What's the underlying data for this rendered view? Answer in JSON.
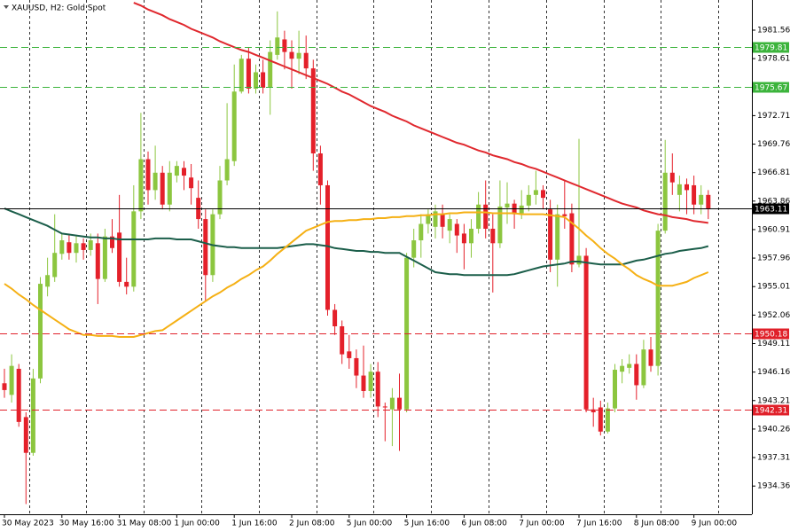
{
  "chart_data": {
    "type": "candlestick",
    "title": "XAUUSD, H2:  Gold Spot",
    "categories": [
      "30 May 2023",
      null,
      null,
      null,
      null,
      null,
      null,
      null,
      "30 May 16:00",
      null,
      null,
      null,
      null,
      null,
      null,
      null,
      "31 May 08:00",
      null,
      null,
      null,
      null,
      null,
      null,
      null,
      "1 Jun 00:00",
      null,
      null,
      null,
      null,
      null,
      null,
      null,
      "1 Jun 16:00",
      null,
      null,
      null,
      null,
      null,
      null,
      null,
      "2 Jun 08:00",
      null,
      null,
      null,
      null,
      null,
      null,
      null,
      "5 Jun 00:00",
      null,
      null,
      null,
      null,
      null,
      null,
      null,
      "5 Jun 16:00",
      null,
      null,
      null,
      null,
      null,
      null,
      null,
      "6 Jun 08:00",
      null,
      null,
      null,
      null,
      null,
      null,
      null,
      "7 Jun 00:00",
      null,
      null,
      null,
      null,
      null,
      null,
      null,
      "7 Jun 16:00",
      null,
      null,
      null,
      null,
      null,
      null,
      null,
      "8 Jun 08:00",
      null,
      null,
      null,
      null,
      null,
      null,
      null,
      "9 Jun 00:00",
      null,
      null
    ],
    "open": [
      1945.0,
      1943.8,
      1946.5,
      1941.5,
      1937.8,
      1945.5,
      1955.0,
      1956.0,
      1958.4,
      1959.6,
      1958.5,
      1959.5,
      1958.8,
      1959.5,
      1955.8,
      1960.2,
      1960.6,
      1955.5,
      1955.0,
      1962.8,
      1968.2,
      1965.0,
      1966.8,
      1963.5,
      1966.5,
      1967.3,
      1966.3,
      1964.2,
      1962.0,
      1956.2,
      1962.5,
      1966.0,
      1968.0,
      1975.2,
      1978.6,
      1975.5,
      1977.2,
      1975.6,
      1979.0,
      1980.6,
      1979.3,
      1978.6,
      1979.2,
      1977.6,
      1968.8,
      1965.5,
      1952.6,
      1950.9,
      1948.3,
      1947.6,
      1945.8,
      1944.2,
      1946.2,
      1942.6,
      1942.3,
      1943.5,
      1942.3,
      1958.0,
      1959.8,
      1961.5,
      1961.2,
      1962.5,
      1960.8,
      1961.5,
      1960.5,
      1959.5,
      1961.0,
      1963.5,
      1961.0,
      1959.5,
      1963.2,
      1963.6,
      1962.6,
      1963.4,
      1964.5,
      1965.0,
      1963.0,
      1957.8,
      1962.5,
      1962.6,
      1957.3,
      1958.2,
      1942.3,
      1942.5,
      1940.0,
      1942.4,
      1946.2,
      1946.6,
      1947.0,
      1944.8,
      1948.5,
      1946.8,
      1960.8,
      1966.8,
      1964.5,
      1965.6,
      1965.5,
      1963.5,
      1964.5
    ],
    "high": [
      1946.5,
      1948.0,
      1947.0,
      1942.0,
      1946.5,
      1956.0,
      1958.0,
      1962.5,
      1960.5,
      1960.5,
      1960.2,
      1960.0,
      1960.5,
      1960.5,
      1961.0,
      1962.0,
      1964.5,
      1958.0,
      1965.5,
      1973.0,
      1969.0,
      1969.6,
      1967.5,
      1968.0,
      1968.0,
      1968.0,
      1967.7,
      1966.0,
      1963.0,
      1963.0,
      1967.5,
      1974.0,
      1978.0,
      1979.0,
      1979.8,
      1978.0,
      1978.5,
      1980.5,
      1983.5,
      1981.5,
      1980.5,
      1981.5,
      1981.0,
      1978.5,
      1969.6,
      1966.0,
      1953.2,
      1951.5,
      1950.0,
      1948.5,
      1948.9,
      1947.0,
      1947.2,
      1943.0,
      1944.5,
      1946.0,
      1958.5,
      1961.0,
      1962.5,
      1963.0,
      1963.5,
      1963.5,
      1962.5,
      1962.0,
      1961.5,
      1962.0,
      1964.8,
      1966.0,
      1962.5,
      1966.0,
      1965.8,
      1964.0,
      1965.0,
      1965.5,
      1967.0,
      1965.5,
      1964.0,
      1963.5,
      1966.0,
      1963.6,
      1970.3,
      1959.0,
      1943.5,
      1943.2,
      1943.0,
      1947.0,
      1947.5,
      1948.0,
      1948.0,
      1949.5,
      1949.8,
      1961.5,
      1970.2,
      1968.8,
      1966.5,
      1966.2,
      1966.5,
      1965.5,
      1965.0
    ],
    "low": [
      1943.5,
      1943.0,
      1940.5,
      1932.5,
      1937.5,
      1945.0,
      1954.0,
      1955.5,
      1957.8,
      1957.8,
      1957.5,
      1957.8,
      1958.2,
      1953.2,
      1955.5,
      1958.5,
      1955.0,
      1954.2,
      1954.5,
      1962.0,
      1963.5,
      1964.0,
      1963.0,
      1962.8,
      1965.8,
      1965.0,
      1963.5,
      1961.0,
      1953.5,
      1955.5,
      1962.0,
      1965.5,
      1967.5,
      1975.0,
      1975.0,
      1975.0,
      1975.0,
      1972.8,
      1978.5,
      1977.5,
      1975.5,
      1977.0,
      1976.5,
      1967.0,
      1963.5,
      1952.0,
      1950.0,
      1947.0,
      1946.5,
      1944.5,
      1943.5,
      1943.5,
      1941.5,
      1939.0,
      1938.5,
      1938.0,
      1942.0,
      1957.0,
      1958.0,
      1960.5,
      1960.0,
      1960.0,
      1959.5,
      1958.5,
      1956.8,
      1958.0,
      1960.5,
      1960.0,
      1954.4,
      1959.0,
      1961.5,
      1961.0,
      1962.0,
      1962.8,
      1963.5,
      1963.0,
      1956.5,
      1955.0,
      1961.0,
      1956.5,
      1957.0,
      1942.0,
      1940.5,
      1939.6,
      1939.8,
      1942.0,
      1945.0,
      1946.0,
      1943.3,
      1944.5,
      1946.2,
      1945.8,
      1960.5,
      1964.5,
      1962.8,
      1962.5,
      1962.5,
      1962.5,
      1962.0
    ],
    "close": [
      1944.3,
      1946.8,
      1941.0,
      1937.8,
      1945.5,
      1955.3,
      1956.2,
      1958.5,
      1959.8,
      1958.5,
      1959.5,
      1958.8,
      1959.8,
      1955.8,
      1960.2,
      1959.0,
      1955.5,
      1955.0,
      1962.8,
      1968.2,
      1965.0,
      1966.8,
      1963.5,
      1966.8,
      1967.5,
      1966.5,
      1965.2,
      1962.0,
      1956.2,
      1962.5,
      1966.0,
      1968.2,
      1975.2,
      1978.6,
      1975.5,
      1977.2,
      1975.6,
      1979.3,
      1980.8,
      1979.3,
      1978.6,
      1979.2,
      1977.6,
      1968.8,
      1965.5,
      1952.6,
      1950.9,
      1948.0,
      1947.6,
      1945.8,
      1944.2,
      1946.2,
      1942.6,
      1942.5,
      1943.5,
      1942.3,
      1958.0,
      1959.8,
      1961.5,
      1962.5,
      1962.8,
      1961.2,
      1962.0,
      1960.3,
      1959.5,
      1961.0,
      1963.5,
      1961.0,
      1959.5,
      1963.3,
      1963.6,
      1962.5,
      1963.4,
      1964.5,
      1965.0,
      1964.2,
      1957.8,
      1962.5,
      1962.3,
      1957.3,
      1958.2,
      1942.3,
      1942.0,
      1940.0,
      1942.4,
      1946.4,
      1946.8,
      1947.0,
      1944.8,
      1948.5,
      1946.8,
      1960.8,
      1966.8,
      1965.8,
      1965.6,
      1965.0,
      1963.5,
      1964.5,
      1963.1
    ],
    "up_color": "#8cc63f",
    "down_color": "#e4202a",
    "lines": [
      {
        "color": "#e0282e",
        "values": [
          null,
          null,
          null,
          null,
          null,
          null,
          null,
          null,
          null,
          null,
          null,
          null,
          null,
          null,
          null,
          null,
          null,
          null,
          1984.4,
          1984.1,
          1983.7,
          1983.4,
          1983.1,
          1982.7,
          1982.4,
          1982.1,
          1981.7,
          1981.4,
          1981.1,
          1980.8,
          1980.4,
          1980.1,
          1979.8,
          1979.5,
          1979.3,
          1979.0,
          1978.7,
          1978.4,
          1978.1,
          1977.8,
          1977.5,
          1977.2,
          1976.9,
          1976.6,
          1976.3,
          1976.0,
          1975.6,
          1975.2,
          1974.9,
          1974.5,
          1974.1,
          1973.7,
          1973.4,
          1973.1,
          1972.7,
          1972.4,
          1972.1,
          1971.7,
          1971.4,
          1971.1,
          1970.8,
          1970.5,
          1970.2,
          1969.9,
          1969.7,
          1969.4,
          1969.1,
          1968.9,
          1968.6,
          1968.4,
          1968.2,
          1967.9,
          1967.7,
          1967.4,
          1967.2,
          1966.9,
          1966.6,
          1966.3,
          1966.0,
          1965.7,
          1965.4,
          1965.1,
          1964.8,
          1964.5,
          1964.2,
          1963.9,
          1963.6,
          1963.4,
          1963.2,
          1962.9,
          1962.7,
          1962.5,
          1962.4,
          1962.2,
          1962.1,
          1962.0,
          1961.8,
          1961.7,
          1961.6
        ]
      },
      {
        "color": "#1b5e4a",
        "values": [
          1963.1,
          1962.8,
          1962.5,
          1962.2,
          1961.9,
          1961.6,
          1961.3,
          1960.9,
          1960.5,
          1960.4,
          1960.3,
          1960.2,
          1960.1,
          1960.1,
          1960.0,
          1960.0,
          1959.9,
          1959.9,
          1959.9,
          1959.9,
          1959.9,
          1960.0,
          1960.0,
          1960.0,
          1959.9,
          1959.9,
          1959.9,
          1959.7,
          1959.5,
          1959.3,
          1959.2,
          1959.1,
          1959.1,
          1959.0,
          1959.0,
          1959.0,
          1959.0,
          1959.0,
          1959.0,
          1959.1,
          1959.2,
          1959.3,
          1959.4,
          1959.4,
          1959.3,
          1959.2,
          1959.0,
          1958.9,
          1958.8,
          1958.7,
          1958.7,
          1958.6,
          1958.6,
          1958.5,
          1958.5,
          1958.5,
          1958.1,
          1957.7,
          1957.3,
          1956.9,
          1956.5,
          1956.4,
          1956.3,
          1956.3,
          1956.2,
          1956.2,
          1956.2,
          1956.2,
          1956.2,
          1956.2,
          1956.2,
          1956.3,
          1956.5,
          1956.7,
          1956.9,
          1957.1,
          1957.2,
          1957.3,
          1957.4,
          1957.6,
          1957.6,
          1957.5,
          1957.4,
          1957.3,
          1957.3,
          1957.3,
          1957.3,
          1957.5,
          1957.7,
          1957.8,
          1958.0,
          1958.2,
          1958.4,
          1958.5,
          1958.7,
          1958.8,
          1958.9,
          1959.0,
          1959.2
        ]
      },
      {
        "color": "#f5b014",
        "values": [
          1955.3,
          1954.8,
          1954.2,
          1953.7,
          1953.1,
          1952.6,
          1952.1,
          1951.6,
          1951.1,
          1950.6,
          1950.3,
          1950.0,
          1950.0,
          1949.9,
          1949.9,
          1949.9,
          1949.8,
          1949.8,
          1949.8,
          1950.0,
          1950.2,
          1950.4,
          1950.5,
          1951.0,
          1951.5,
          1952.0,
          1952.5,
          1953.0,
          1953.5,
          1954.0,
          1954.4,
          1954.9,
          1955.3,
          1955.8,
          1956.2,
          1956.7,
          1957.1,
          1957.7,
          1958.4,
          1959.0,
          1959.6,
          1960.2,
          1960.8,
          1961.1,
          1961.4,
          1961.7,
          1961.8,
          1961.8,
          1961.9,
          1961.9,
          1962.0,
          1962.0,
          1962.1,
          1962.1,
          1962.2,
          1962.2,
          1962.3,
          1962.3,
          1962.4,
          1962.4,
          1962.5,
          1962.5,
          1962.6,
          1962.6,
          1962.7,
          1962.7,
          1962.7,
          1962.7,
          1962.6,
          1962.6,
          1962.6,
          1962.6,
          1962.5,
          1962.5,
          1962.5,
          1962.5,
          1962.4,
          1962.3,
          1962.2,
          1961.6,
          1961.0,
          1960.3,
          1959.7,
          1959.0,
          1958.4,
          1957.9,
          1957.3,
          1956.8,
          1956.2,
          1955.8,
          1955.5,
          1955.1,
          1955.1,
          1955.1,
          1955.3,
          1955.5,
          1955.9,
          1956.2,
          1956.5
        ]
      }
    ],
    "levels": [
      {
        "value": 1979.81,
        "color": "#3cb43c",
        "style": "dashed"
      },
      {
        "value": 1975.67,
        "color": "#3cb43c",
        "style": "dashed"
      },
      {
        "value": 1950.18,
        "color": "#e0202a",
        "style": "dashed"
      },
      {
        "value": 1942.31,
        "color": "#e0202a",
        "style": "dashed"
      },
      {
        "value": 1963.11,
        "color": "#000000",
        "style": "solid"
      }
    ],
    "ylim": [
      1931.44,
      1984.68
    ],
    "yticks": [
      1934.36,
      1937.31,
      1940.26,
      1943.21,
      1946.16,
      1949.11,
      1952.06,
      1955.01,
      1957.96,
      1960.91,
      1963.86,
      1966.81,
      1969.76,
      1972.71,
      1978.61,
      1981.56
    ],
    "grid": true
  }
}
